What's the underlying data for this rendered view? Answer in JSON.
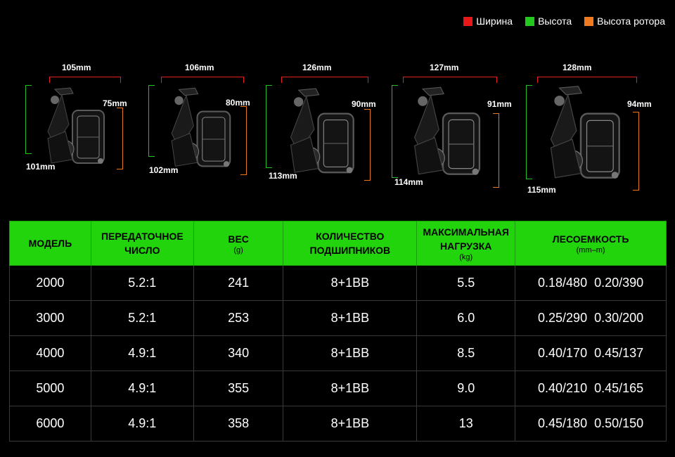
{
  "legend": [
    {
      "label": "Ширина",
      "color": "#e81818"
    },
    {
      "label": "Высота",
      "color": "#22c81e"
    },
    {
      "label": "Высота ротора",
      "color": "#f07a20"
    }
  ],
  "reels": [
    {
      "width": "105mm",
      "height": "101mm",
      "rotor": "75mm"
    },
    {
      "width": "106mm",
      "height": "102mm",
      "rotor": "80mm"
    },
    {
      "width": "126mm",
      "height": "113mm",
      "rotor": "90mm"
    },
    {
      "width": "127mm",
      "height": "114mm",
      "rotor": "91mm"
    },
    {
      "width": "128mm",
      "height": "115mm",
      "rotor": "94mm"
    }
  ],
  "table": {
    "headers": [
      {
        "label": "МОДЕЛЬ",
        "unit": ""
      },
      {
        "label": "ПЕРЕДАТОЧНОЕ ЧИСЛО",
        "unit": ""
      },
      {
        "label": "ВЕС",
        "unit": "(g)"
      },
      {
        "label": "КОЛИЧЕСТВО ПОДШИПНИКОВ",
        "unit": ""
      },
      {
        "label": "МАКСИМАЛЬНАЯ НАГРУЗКА",
        "unit": "(kg)"
      },
      {
        "label": "ЛЕСОЕМКОСТЬ",
        "unit": "(mm–m)"
      }
    ],
    "rows": [
      [
        "2000",
        "5.2:1",
        "241",
        "8+1BB",
        "5.5",
        "0.18/480  0.20/390"
      ],
      [
        "3000",
        "5.2:1",
        "253",
        "8+1BB",
        "6.0",
        "0.25/290  0.30/200"
      ],
      [
        "4000",
        "4.9:1",
        "340",
        "8+1BB",
        "8.5",
        "0.40/170  0.45/137"
      ],
      [
        "5000",
        "4.9:1",
        "355",
        "8+1BB",
        "9.0",
        "0.40/210  0.45/165"
      ],
      [
        "6000",
        "4.9:1",
        "358",
        "8+1BB",
        "13",
        "0.45/180  0.50/150"
      ]
    ]
  }
}
